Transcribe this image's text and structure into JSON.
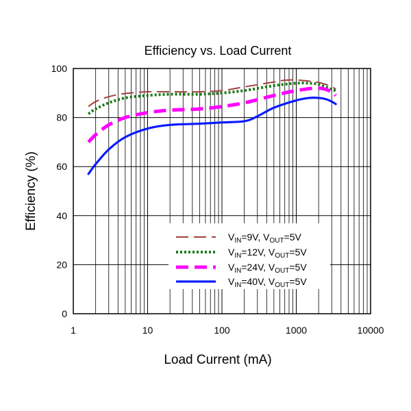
{
  "chart_data": {
    "type": "line",
    "title": "Efficiency vs. Load Current",
    "xlabel": "Load Current (mA)",
    "ylabel": "Efficiency (%)",
    "x_scale": "log",
    "xlim": [
      1,
      10000
    ],
    "ylim": [
      0,
      100
    ],
    "x_ticks": [
      1,
      10,
      100,
      1000,
      10000
    ],
    "x_tick_labels": [
      "1",
      "10",
      "100",
      "1000",
      "10000"
    ],
    "y_ticks": [
      0,
      20,
      40,
      60,
      80,
      100
    ],
    "y_tick_labels": [
      "0",
      "20",
      "40",
      "60",
      "80",
      "100"
    ],
    "grid": true,
    "legend_position": "lower-right",
    "series": [
      {
        "name": "VIN=9V, VOUT=5V",
        "legend": {
          "v1": "V",
          "s1": "IN",
          "m1": "=9V, V",
          "s2": "OUT",
          "m2": "=5V"
        },
        "color": "#a0403c",
        "style": "long-dash",
        "x": [
          1.6,
          2,
          3,
          5,
          10,
          20,
          50,
          100,
          200,
          500,
          700,
          1000,
          2000,
          3000,
          3400
        ],
        "y": [
          84.5,
          86.5,
          88.5,
          89.8,
          90.5,
          90.5,
          90.5,
          91,
          92.5,
          94.5,
          95.2,
          95.3,
          94.3,
          92.5,
          91.5
        ]
      },
      {
        "name": "VIN=12V, VOUT=5V",
        "legend": {
          "v1": "V",
          "s1": "IN",
          "m1": "=12V, V",
          "s2": "OUT",
          "m2": "=5V"
        },
        "color": "#1a7a1a",
        "style": "dotted",
        "x": [
          1.6,
          2,
          3,
          5,
          10,
          20,
          50,
          100,
          200,
          500,
          1000,
          1500,
          2000,
          3000,
          3400
        ],
        "y": [
          81.5,
          83.5,
          86,
          88,
          89,
          89.5,
          89.5,
          90,
          91,
          93,
          94,
          94,
          93.5,
          91.5,
          91
        ]
      },
      {
        "name": "VIN=24V, VOUT=5V",
        "legend": {
          "v1": "V",
          "s1": "IN",
          "m1": "=24V, V",
          "s2": "OUT",
          "m2": "=5V"
        },
        "color": "#ff00ff",
        "style": "dashed",
        "x": [
          1.6,
          2,
          3,
          5,
          10,
          20,
          50,
          100,
          200,
          500,
          1000,
          2000,
          3000,
          3400
        ],
        "y": [
          70,
          73,
          77,
          80,
          82,
          83,
          83.5,
          84.5,
          86,
          89,
          91,
          92,
          90.5,
          89
        ]
      },
      {
        "name": "VIN=40V, VOUT=5V",
        "legend": {
          "v1": "V",
          "s1": "IN",
          "m1": "=40V, V",
          "s2": "OUT",
          "m2": "=5V"
        },
        "color": "#0a1aff",
        "style": "solid",
        "x": [
          1.6,
          2,
          3,
          5,
          10,
          20,
          50,
          100,
          200,
          300,
          500,
          1000,
          1500,
          2000,
          2500,
          3000,
          3400
        ],
        "y": [
          57,
          61,
          67,
          72,
          75.5,
          77,
          77.5,
          78,
          78.5,
          80.5,
          84,
          87,
          88,
          88,
          87.5,
          86.5,
          85.5
        ]
      }
    ]
  }
}
